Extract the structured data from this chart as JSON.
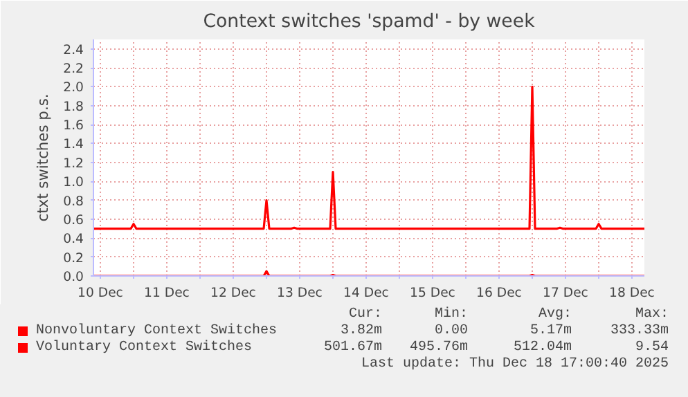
{
  "chart_data": {
    "type": "line",
    "title": "Context switches 'spamd' - by week",
    "ylabel": "ctxt switches p.s.",
    "x": [
      "2025-12-10T09:30",
      "2025-12-10T23:00",
      "2025-12-11T00:00",
      "2025-12-11T01:00",
      "2025-12-12T23:00",
      "2025-12-13T00:00",
      "2025-12-13T01:00",
      "2025-12-13T09:00",
      "2025-12-13T10:00",
      "2025-12-13T11:00",
      "2025-12-13T23:00",
      "2025-12-14T00:00",
      "2025-12-14T01:00",
      "2025-12-16T23:00",
      "2025-12-17T00:00",
      "2025-12-17T01:00",
      "2025-12-17T09:00",
      "2025-12-17T10:00",
      "2025-12-17T11:00",
      "2025-12-17T23:00",
      "2025-12-18T00:00",
      "2025-12-18T01:00",
      "2025-12-18T16:30"
    ],
    "series": [
      {
        "name": "Nonvoluntary Context Switches",
        "color": "#ff0000",
        "values": [
          0,
          0,
          0,
          0,
          0,
          0.05,
          0,
          0,
          0,
          0,
          0,
          0.01,
          0,
          0,
          0.01,
          0,
          0,
          0,
          0,
          0,
          0,
          0,
          0
        ]
      },
      {
        "name": "Voluntary Context Switches",
        "color": "#ff0000",
        "values": [
          0.5,
          0.5,
          0.55,
          0.5,
          0.5,
          0.8,
          0.5,
          0.5,
          0.51,
          0.5,
          0.5,
          1.1,
          0.5,
          0.5,
          2.0,
          0.5,
          0.5,
          0.51,
          0.5,
          0.5,
          0.55,
          0.5,
          0.5
        ]
      }
    ],
    "xlim": [
      "2025-12-10T09:30",
      "2025-12-18T16:30"
    ],
    "xticks": [
      {
        "value": "2025-12-10T12:00",
        "label": "10 Dec"
      },
      {
        "value": "2025-12-11T00:00",
        "label": null
      },
      {
        "value": "2025-12-11T12:00",
        "label": "11 Dec"
      },
      {
        "value": "2025-12-12T00:00",
        "label": null
      },
      {
        "value": "2025-12-12T12:00",
        "label": "12 Dec"
      },
      {
        "value": "2025-12-13T00:00",
        "label": null
      },
      {
        "value": "2025-12-13T12:00",
        "label": "13 Dec"
      },
      {
        "value": "2025-12-14T00:00",
        "label": null
      },
      {
        "value": "2025-12-14T12:00",
        "label": "14 Dec"
      },
      {
        "value": "2025-12-15T00:00",
        "label": null
      },
      {
        "value": "2025-12-15T12:00",
        "label": "15 Dec"
      },
      {
        "value": "2025-12-16T00:00",
        "label": null
      },
      {
        "value": "2025-12-16T12:00",
        "label": "16 Dec"
      },
      {
        "value": "2025-12-17T00:00",
        "label": null
      },
      {
        "value": "2025-12-17T12:00",
        "label": "17 Dec"
      },
      {
        "value": "2025-12-18T00:00",
        "label": null
      },
      {
        "value": "2025-12-18T12:00",
        "label": "18 Dec"
      }
    ],
    "ylim": [
      0,
      2.5
    ],
    "yticks": [
      {
        "value": 0,
        "label": "0.0"
      },
      0.2,
      0.4,
      0.6,
      0.8,
      {
        "value": 1,
        "label": "1.0"
      },
      1.2,
      1.4,
      1.6,
      1.8,
      {
        "value": 2,
        "label": "2.0"
      },
      2.2,
      2.4
    ],
    "grid": true,
    "legend": "bottom",
    "marker": "none",
    "line_style": "solid",
    "annotations": [
      "Cur:",
      "Min:",
      "Avg:",
      "Max:",
      "3.82m",
      "0.00",
      "5.17m",
      "333.33m",
      "501.67m",
      "495.76m",
      "512.04m",
      "9.54",
      "Last update: Thu Dec 18 17:00:40 2025"
    ]
  }
}
